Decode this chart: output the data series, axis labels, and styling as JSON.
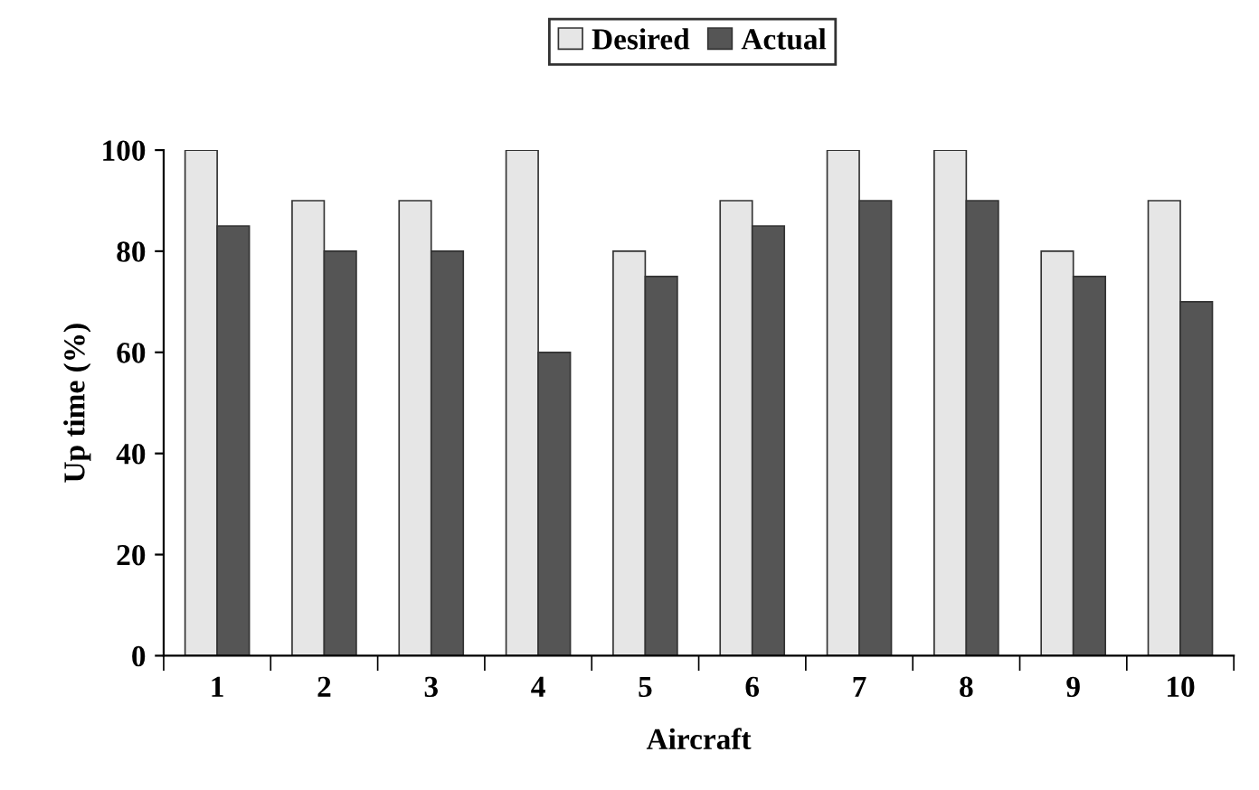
{
  "chart_data": {
    "type": "bar",
    "xlabel": "Aircraft",
    "ylabel": "Up time (%)",
    "categories": [
      "1",
      "2",
      "3",
      "4",
      "5",
      "6",
      "7",
      "8",
      "9",
      "10"
    ],
    "series": [
      {
        "name": "Desired",
        "color": "#e6e6e6",
        "values": [
          100,
          90,
          90,
          100,
          80,
          90,
          100,
          100,
          80,
          90
        ]
      },
      {
        "name": "Actual",
        "color": "#555555",
        "values": [
          85,
          80,
          80,
          60,
          75,
          85,
          90,
          90,
          75,
          70
        ]
      }
    ],
    "ylim": [
      0,
      100
    ],
    "yticks": [
      0,
      20,
      40,
      60,
      80,
      100
    ],
    "grid": false,
    "legend": "top"
  }
}
